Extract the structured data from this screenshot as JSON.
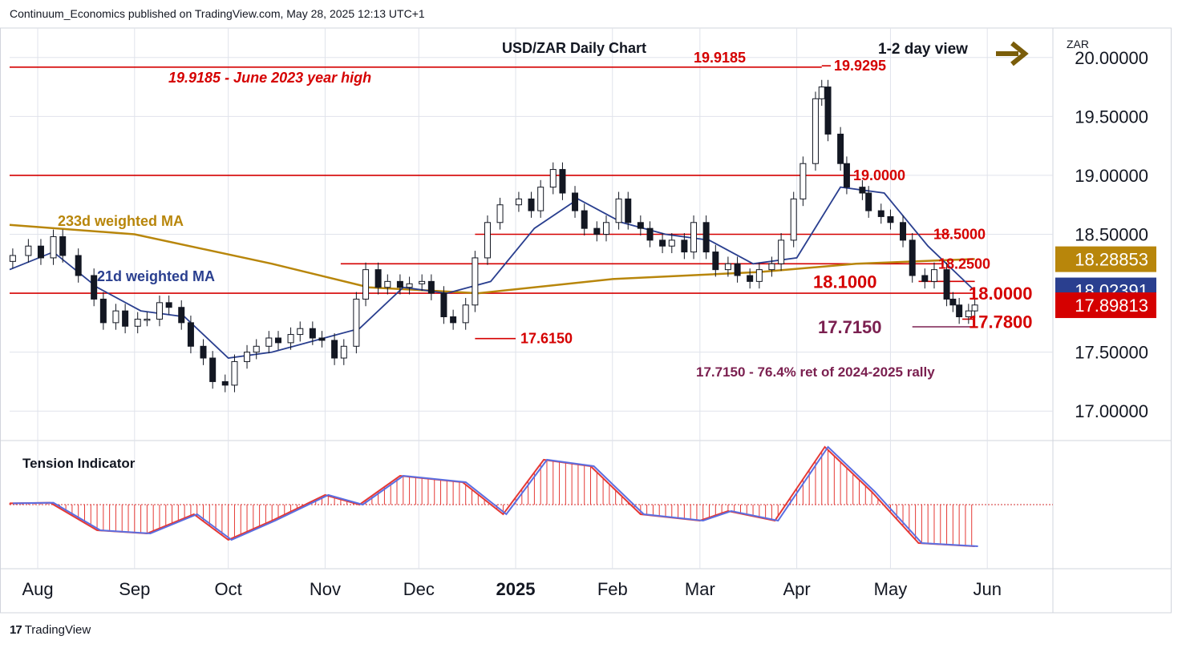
{
  "header": {
    "publisher_line": "Continuum_Economics published on TradingView.com, May 28, 2025 12:13 UTC+1",
    "brand_mark": "17",
    "brand": "TradingView"
  },
  "colors": {
    "up": "#ffffff",
    "down": "#131722",
    "level": "#d50000",
    "wma21": "#2a3f8f",
    "wma233": "#b8860b",
    "fib": "#7b2050",
    "arrow": "#7a5d0a",
    "tension_hist": "#e53935",
    "tension_red": "#e53935",
    "tension_blue": "#5b6ee1",
    "grid": "#e0e3eb"
  },
  "chart_data": [
    {
      "type": "candlestick",
      "title": "USD/ZAR Daily Chart",
      "view_note": "1-2 day view",
      "view_arrow": "right-arrow-icon",
      "currency_label": "ZAR",
      "x_ticks": [
        "Aug",
        "Sep",
        "Oct",
        "Nov",
        "Dec",
        "2025",
        "Feb",
        "Mar",
        "Apr",
        "May",
        "Jun"
      ],
      "x_range": [
        "2024-07-23",
        "2025-06-22"
      ],
      "y_ticks": [
        "20.00000",
        "19.50000",
        "19.00000",
        "18.50000",
        "17.50000",
        "17.00000"
      ],
      "ylim": [
        16.75,
        20.25
      ],
      "price_badges": [
        {
          "label": "18.28853",
          "value": 18.28853,
          "color": "#b8860b",
          "text_color": "#ffffff"
        },
        {
          "label": "18.02391",
          "value": 18.02391,
          "color": "#2a3f8f",
          "text_color": "#ffffff"
        },
        {
          "label": "17.89813",
          "value": 17.89813,
          "color": "#d50000",
          "text_color": "#ffffff"
        }
      ],
      "levels": [
        {
          "value": 19.9185,
          "from": "2024-07-23",
          "to": "2025-04-09",
          "label": "19.9185 - June 2023 year high",
          "label_style": "bold-italic"
        },
        {
          "value": 19.0,
          "from": "2024-07-23",
          "to": "2025-04-20",
          "label": "19.0000"
        },
        {
          "value": 18.5,
          "from": "2024-12-19",
          "to": "2025-05-20",
          "label": "18.5000"
        },
        {
          "value": 18.25,
          "from": "2024-11-06",
          "to": "2025-05-18",
          "label": "18.2500"
        },
        {
          "value": 18.1,
          "from": "2025-05-10",
          "to": "2025-05-28",
          "label": "18.1000",
          "big": true
        },
        {
          "value": 18.0,
          "from": "2024-07-23",
          "to": "2025-05-28",
          "label": "18.0000",
          "big": true
        },
        {
          "value": 17.78,
          "from": "2025-05-24",
          "to": "2025-05-28",
          "label": "17.7800",
          "big": true
        },
        {
          "value": 17.615,
          "from": "2024-12-19",
          "to": "2025-01-01",
          "label": "17.6150"
        }
      ],
      "swing_labels": [
        {
          "label": "19.9185",
          "value": 19.9185
        },
        {
          "label": "19.9295",
          "value": 19.9295
        }
      ],
      "fib": {
        "value": 17.715,
        "label": "17.7150",
        "note": "17.7150 - 76.4% ret of 2024-2025 rally"
      },
      "ma_labels": [
        {
          "label": "233d weighted MA",
          "color": "#b8860b"
        },
        {
          "label": "21d weighted MA",
          "color": "#2a3f8f"
        }
      ],
      "ohlc": [
        {
          "d": "2024-07-24",
          "c": 18.32
        },
        {
          "d": "2024-07-29",
          "c": 18.4
        },
        {
          "d": "2024-08-02",
          "c": 18.3
        },
        {
          "d": "2024-08-06",
          "c": 18.48
        },
        {
          "d": "2024-08-09",
          "c": 18.32
        },
        {
          "d": "2024-08-14",
          "c": 18.15
        },
        {
          "d": "2024-08-19",
          "c": 17.95
        },
        {
          "d": "2024-08-22",
          "c": 17.75
        },
        {
          "d": "2024-08-26",
          "c": 17.85
        },
        {
          "d": "2024-08-29",
          "c": 17.72
        },
        {
          "d": "2024-09-02",
          "c": 17.78
        },
        {
          "d": "2024-09-05",
          "c": 17.78
        },
        {
          "d": "2024-09-09",
          "c": 17.92
        },
        {
          "d": "2024-09-12",
          "c": 17.88
        },
        {
          "d": "2024-09-16",
          "c": 17.75
        },
        {
          "d": "2024-09-19",
          "c": 17.55
        },
        {
          "d": "2024-09-23",
          "c": 17.45
        },
        {
          "d": "2024-09-26",
          "c": 17.25
        },
        {
          "d": "2024-09-30",
          "c": 17.22
        },
        {
          "d": "2024-10-03",
          "c": 17.42
        },
        {
          "d": "2024-10-07",
          "c": 17.5
        },
        {
          "d": "2024-10-10",
          "c": 17.55
        },
        {
          "d": "2024-10-14",
          "c": 17.62
        },
        {
          "d": "2024-10-17",
          "c": 17.58
        },
        {
          "d": "2024-10-21",
          "c": 17.65
        },
        {
          "d": "2024-10-24",
          "c": 17.7
        },
        {
          "d": "2024-10-28",
          "c": 17.62
        },
        {
          "d": "2024-10-31",
          "c": 17.6
        },
        {
          "d": "2024-11-04",
          "c": 17.45
        },
        {
          "d": "2024-11-07",
          "c": 17.55
        },
        {
          "d": "2024-11-11",
          "c": 17.95
        },
        {
          "d": "2024-11-14",
          "c": 18.2
        },
        {
          "d": "2024-11-18",
          "c": 18.05
        },
        {
          "d": "2024-11-21",
          "c": 18.1
        },
        {
          "d": "2024-11-25",
          "c": 18.05
        },
        {
          "d": "2024-11-28",
          "c": 18.08
        },
        {
          "d": "2024-12-02",
          "c": 18.1
        },
        {
          "d": "2024-12-05",
          "c": 18.0
        },
        {
          "d": "2024-12-09",
          "c": 17.8
        },
        {
          "d": "2024-12-12",
          "c": 17.75
        },
        {
          "d": "2024-12-16",
          "c": 17.9
        },
        {
          "d": "2024-12-19",
          "c": 18.3
        },
        {
          "d": "2024-12-23",
          "c": 18.6
        },
        {
          "d": "2024-12-27",
          "c": 18.75
        },
        {
          "d": "2025-01-02",
          "c": 18.8
        },
        {
          "d": "2025-01-06",
          "c": 18.7
        },
        {
          "d": "2025-01-09",
          "c": 18.9
        },
        {
          "d": "2025-01-13",
          "c": 19.05
        },
        {
          "d": "2025-01-16",
          "c": 18.85
        },
        {
          "d": "2025-01-20",
          "c": 18.7
        },
        {
          "d": "2025-01-23",
          "c": 18.55
        },
        {
          "d": "2025-01-27",
          "c": 18.5
        },
        {
          "d": "2025-01-30",
          "c": 18.6
        },
        {
          "d": "2025-02-03",
          "c": 18.8
        },
        {
          "d": "2025-02-06",
          "c": 18.6
        },
        {
          "d": "2025-02-10",
          "c": 18.55
        },
        {
          "d": "2025-02-13",
          "c": 18.45
        },
        {
          "d": "2025-02-17",
          "c": 18.4
        },
        {
          "d": "2025-02-20",
          "c": 18.45
        },
        {
          "d": "2025-02-24",
          "c": 18.35
        },
        {
          "d": "2025-02-27",
          "c": 18.6
        },
        {
          "d": "2025-03-03",
          "c": 18.35
        },
        {
          "d": "2025-03-06",
          "c": 18.2
        },
        {
          "d": "2025-03-10",
          "c": 18.25
        },
        {
          "d": "2025-03-13",
          "c": 18.15
        },
        {
          "d": "2025-03-17",
          "c": 18.1
        },
        {
          "d": "2025-03-20",
          "c": 18.2
        },
        {
          "d": "2025-03-24",
          "c": 18.25
        },
        {
          "d": "2025-03-27",
          "c": 18.45
        },
        {
          "d": "2025-03-31",
          "c": 18.8
        },
        {
          "d": "2025-04-03",
          "c": 19.1
        },
        {
          "d": "2025-04-07",
          "c": 19.65
        },
        {
          "d": "2025-04-09",
          "c": 19.75
        },
        {
          "d": "2025-04-11",
          "c": 19.35
        },
        {
          "d": "2025-04-15",
          "c": 19.1
        },
        {
          "d": "2025-04-17",
          "c": 18.9
        },
        {
          "d": "2025-04-22",
          "c": 18.85
        },
        {
          "d": "2025-04-24",
          "c": 18.7
        },
        {
          "d": "2025-04-28",
          "c": 18.65
        },
        {
          "d": "2025-05-01",
          "c": 18.6
        },
        {
          "d": "2025-05-05",
          "c": 18.45
        },
        {
          "d": "2025-05-08",
          "c": 18.15
        },
        {
          "d": "2025-05-12",
          "c": 18.1
        },
        {
          "d": "2025-05-15",
          "c": 18.2
        },
        {
          "d": "2025-05-19",
          "c": 17.95
        },
        {
          "d": "2025-05-21",
          "c": 17.9
        },
        {
          "d": "2025-05-23",
          "c": 17.8
        },
        {
          "d": "2025-05-26",
          "c": 17.85
        },
        {
          "d": "2025-05-28",
          "c": 17.9
        }
      ],
      "wma21": [
        {
          "d": "2024-07-23",
          "v": 18.2
        },
        {
          "d": "2024-08-06",
          "v": 18.35
        },
        {
          "d": "2024-08-20",
          "v": 18.05
        },
        {
          "d": "2024-09-03",
          "v": 17.85
        },
        {
          "d": "2024-09-17",
          "v": 17.8
        },
        {
          "d": "2024-10-01",
          "v": 17.45
        },
        {
          "d": "2024-10-15",
          "v": 17.5
        },
        {
          "d": "2024-10-29",
          "v": 17.6
        },
        {
          "d": "2024-11-12",
          "v": 17.7
        },
        {
          "d": "2024-11-26",
          "v": 18.05
        },
        {
          "d": "2024-12-10",
          "v": 18.0
        },
        {
          "d": "2024-12-24",
          "v": 18.1
        },
        {
          "d": "2025-01-07",
          "v": 18.55
        },
        {
          "d": "2025-01-21",
          "v": 18.8
        },
        {
          "d": "2025-02-04",
          "v": 18.6
        },
        {
          "d": "2025-02-18",
          "v": 18.5
        },
        {
          "d": "2025-03-04",
          "v": 18.45
        },
        {
          "d": "2025-03-18",
          "v": 18.25
        },
        {
          "d": "2025-04-01",
          "v": 18.3
        },
        {
          "d": "2025-04-15",
          "v": 18.9
        },
        {
          "d": "2025-04-29",
          "v": 18.85
        },
        {
          "d": "2025-05-13",
          "v": 18.4
        },
        {
          "d": "2025-05-28",
          "v": 18.02
        }
      ],
      "wma233": [
        {
          "d": "2024-07-23",
          "v": 18.58
        },
        {
          "d": "2024-09-01",
          "v": 18.5
        },
        {
          "d": "2024-10-15",
          "v": 18.25
        },
        {
          "d": "2024-11-15",
          "v": 18.05
        },
        {
          "d": "2024-12-20",
          "v": 18.0
        },
        {
          "d": "2025-02-01",
          "v": 18.12
        },
        {
          "d": "2025-03-20",
          "v": 18.18
        },
        {
          "d": "2025-04-20",
          "v": 18.25
        },
        {
          "d": "2025-05-28",
          "v": 18.29
        }
      ]
    },
    {
      "type": "line",
      "title": "Tension Indicator",
      "ylim": [
        -1,
        1
      ],
      "series": [
        {
          "values": [
            {
              "d": "2024-07-23",
              "v": 0.02
            },
            {
              "d": "2024-08-05",
              "v": 0.03
            },
            {
              "d": "2024-08-20",
              "v": -0.4
            },
            {
              "d": "2024-09-05",
              "v": -0.45
            },
            {
              "d": "2024-09-20",
              "v": -0.15
            },
            {
              "d": "2024-10-01",
              "v": -0.55
            },
            {
              "d": "2024-10-15",
              "v": -0.25
            },
            {
              "d": "2024-11-01",
              "v": 0.15
            },
            {
              "d": "2024-11-12",
              "v": 0.0
            },
            {
              "d": "2024-11-25",
              "v": 0.45
            },
            {
              "d": "2024-12-15",
              "v": 0.35
            },
            {
              "d": "2024-12-28",
              "v": -0.15
            },
            {
              "d": "2025-01-10",
              "v": 0.7
            },
            {
              "d": "2025-01-25",
              "v": 0.6
            },
            {
              "d": "2025-02-10",
              "v": -0.15
            },
            {
              "d": "2025-03-01",
              "v": -0.25
            },
            {
              "d": "2025-03-10",
              "v": -0.1
            },
            {
              "d": "2025-03-25",
              "v": -0.25
            },
            {
              "d": "2025-04-10",
              "v": 0.9
            },
            {
              "d": "2025-04-25",
              "v": 0.2
            },
            {
              "d": "2025-05-10",
              "v": -0.6
            },
            {
              "d": "2025-05-28",
              "v": -0.65
            }
          ]
        }
      ]
    }
  ]
}
